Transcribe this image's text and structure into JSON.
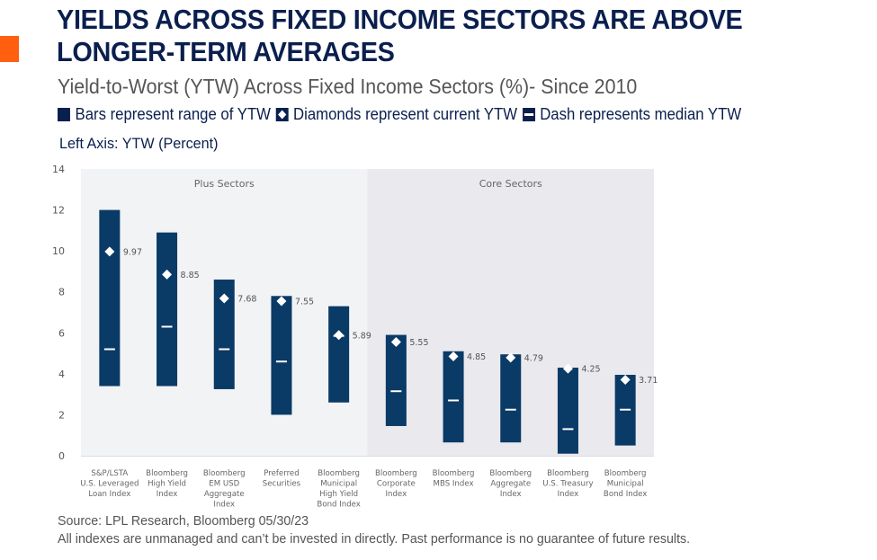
{
  "header": {
    "title_line1": "YIELDS ACROSS FIXED INCOME SECTORS ARE ABOVE",
    "title_line2": "LONGER-TERM AVERAGES",
    "subtitle": "Yield-to-Worst (YTW) Across Fixed Income Sectors (%)- Since 2010",
    "accent_color": "#ff5f0f"
  },
  "legend": {
    "items": [
      {
        "icon": "filled-square-icon",
        "label": "Bars represent range of YTW"
      },
      {
        "icon": "diamond-icon",
        "label": "Diamonds represent current YTW"
      },
      {
        "icon": "dash-icon",
        "label": "Dash represents median YTW"
      }
    ]
  },
  "axis_note": "Left Axis: YTW (Percent)",
  "footer": {
    "source": "Source: LPL Research, Bloomberg  05/30/23",
    "disclaimer": "All indexes are unmanaged and can’t be invested in directly. Past performance is no guarantee of future results."
  },
  "colors": {
    "bar": "#0a3a66",
    "text_dark": "#0a1f4e",
    "plus_panel": "#f2f3f5",
    "core_panel": "#e9e9ee"
  },
  "chart_data": {
    "type": "range-bar",
    "title": "Yield-to-Worst (YTW) Across Fixed Income Sectors (%)- Since 2010",
    "ylabel": "YTW (Percent)",
    "ylim": [
      0,
      14
    ],
    "yticks": [
      0,
      2,
      4,
      6,
      8,
      10,
      12,
      14
    ],
    "grid": false,
    "groups": [
      {
        "name": "Plus Sectors",
        "range": [
          0,
          4
        ]
      },
      {
        "name": "Core Sectors",
        "range": [
          5,
          9
        ]
      }
    ],
    "categories": [
      [
        "S&P/LSTA",
        "U.S. Leveraged",
        "Loan Index"
      ],
      [
        "Bloomberg",
        "High Yield",
        "Index"
      ],
      [
        "Bloomberg",
        "EM USD",
        "Aggregate",
        "Index"
      ],
      [
        "Preferred",
        "Securities"
      ],
      [
        "Bloomberg",
        "Municipal",
        "High Yield",
        "Bond Index"
      ],
      [
        "Bloomberg",
        "Corporate",
        "Index"
      ],
      [
        "Bloomberg",
        "MBS Index"
      ],
      [
        "Bloomberg",
        "Aggregate",
        "Index"
      ],
      [
        "Bloomberg",
        "U.S. Treasury",
        "Index"
      ],
      [
        "Bloomberg",
        "Municipal",
        "Bond Index"
      ]
    ],
    "series": [
      {
        "name": "Range high",
        "values": [
          12.0,
          10.9,
          8.6,
          7.8,
          7.3,
          5.9,
          5.1,
          4.95,
          4.3,
          3.95
        ]
      },
      {
        "name": "Range low",
        "values": [
          3.4,
          3.4,
          3.25,
          2.0,
          2.6,
          1.45,
          0.65,
          0.65,
          0.1,
          0.5
        ]
      },
      {
        "name": "Median YTW",
        "values": [
          5.2,
          6.3,
          5.2,
          4.6,
          5.85,
          3.15,
          2.7,
          2.25,
          1.3,
          2.25
        ]
      },
      {
        "name": "Current YTW",
        "values": [
          9.97,
          8.85,
          7.68,
          7.55,
          5.89,
          5.55,
          4.85,
          4.79,
          4.25,
          3.71
        ]
      }
    ],
    "current_labels": [
      "9.97",
      "8.85",
      "7.68",
      "7.55",
      "5.89",
      "5.55",
      "4.85",
      "4.79",
      "4.25",
      "3.71"
    ]
  }
}
